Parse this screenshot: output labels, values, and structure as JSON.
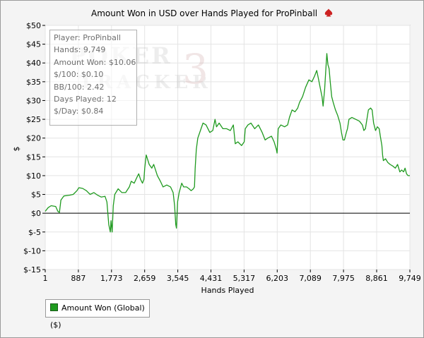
{
  "title": "Amount Won in USD over Hands Played for ProPinball",
  "stats": [
    "Player: ProPinball",
    "Hands: 9,749",
    "Amount Won: $10.06",
    "$/100: $0.10",
    "BB/100: 2.42",
    "Days Played: 12",
    "$/Day: $0.84"
  ],
  "watermark": {
    "line1": "POKER",
    "line2": "TRACKER",
    "number": "3"
  },
  "legend": {
    "label": "Amount Won (Global) ($)"
  },
  "colors": {
    "series": "#1f9a1f",
    "grid": "#e4e4e4",
    "plot_bg": "#ffffff",
    "spade": "#cc2222"
  },
  "chart_data": {
    "type": "line",
    "title": "Amount Won in USD over Hands Played for ProPinball",
    "xlabel": "Hands Played",
    "ylabel": "$",
    "xlim": [
      1,
      9749
    ],
    "ylim": [
      -15,
      50
    ],
    "x_ticks": [
      1,
      887,
      1773,
      2659,
      3545,
      4431,
      5317,
      6203,
      7089,
      7975,
      8861,
      9749
    ],
    "x_tick_labels": [
      "1",
      "887",
      "1,773",
      "2,659",
      "3,545",
      "4,431",
      "5,317",
      "6,203",
      "7,089",
      "7,975",
      "8,861",
      "9,749"
    ],
    "y_ticks": [
      50,
      45,
      40,
      35,
      30,
      25,
      20,
      15,
      10,
      5,
      0,
      -5,
      -10,
      -15
    ],
    "y_tick_labels": [
      "$50",
      "$45",
      "$40",
      "$35",
      "$30",
      "$25",
      "$20",
      "$15",
      "$10",
      "$5",
      "$0",
      "$-5",
      "$-10",
      "$-15"
    ],
    "grid": true,
    "legend_position": "bottom-left",
    "series": [
      {
        "name": "Amount Won (Global) ($)",
        "points": [
          [
            1,
            0.5
          ],
          [
            80,
            1.5
          ],
          [
            160,
            2.0
          ],
          [
            280,
            1.8
          ],
          [
            340,
            0.5
          ],
          [
            380,
            0.2
          ],
          [
            420,
            3.5
          ],
          [
            500,
            4.6
          ],
          [
            650,
            4.8
          ],
          [
            750,
            5.0
          ],
          [
            850,
            6.0
          ],
          [
            900,
            6.8
          ],
          [
            1000,
            6.6
          ],
          [
            1100,
            6.0
          ],
          [
            1200,
            5.0
          ],
          [
            1300,
            5.5
          ],
          [
            1400,
            4.8
          ],
          [
            1500,
            4.3
          ],
          [
            1600,
            4.5
          ],
          [
            1650,
            3.0
          ],
          [
            1700,
            -3.0
          ],
          [
            1740,
            -5.0
          ],
          [
            1760,
            -2.0
          ],
          [
            1790,
            -5.0
          ],
          [
            1820,
            2.0
          ],
          [
            1860,
            5.0
          ],
          [
            1950,
            6.5
          ],
          [
            2050,
            5.5
          ],
          [
            2150,
            5.5
          ],
          [
            2250,
            7.0
          ],
          [
            2300,
            8.5
          ],
          [
            2380,
            8.0
          ],
          [
            2450,
            9.5
          ],
          [
            2500,
            10.5
          ],
          [
            2550,
            9.0
          ],
          [
            2600,
            8.0
          ],
          [
            2640,
            9.0
          ],
          [
            2660,
            12.0
          ],
          [
            2700,
            15.5
          ],
          [
            2780,
            13.0
          ],
          [
            2850,
            12.0
          ],
          [
            2900,
            13.0
          ],
          [
            2950,
            11.5
          ],
          [
            3000,
            10.0
          ],
          [
            3080,
            8.5
          ],
          [
            3150,
            7.0
          ],
          [
            3250,
            7.5
          ],
          [
            3350,
            7.0
          ],
          [
            3420,
            5.5
          ],
          [
            3460,
            2.0
          ],
          [
            3490,
            -3.0
          ],
          [
            3510,
            -4.0
          ],
          [
            3540,
            3.0
          ],
          [
            3580,
            5.5
          ],
          [
            3650,
            8.0
          ],
          [
            3700,
            7.0
          ],
          [
            3780,
            7.0
          ],
          [
            3850,
            6.5
          ],
          [
            3900,
            6.0
          ],
          [
            3960,
            6.5
          ],
          [
            3990,
            7.0
          ],
          [
            4010,
            12.0
          ],
          [
            4040,
            17.0
          ],
          [
            4080,
            20.0
          ],
          [
            4150,
            22.0
          ],
          [
            4220,
            24.0
          ],
          [
            4300,
            23.5
          ],
          [
            4400,
            21.5
          ],
          [
            4480,
            22.0
          ],
          [
            4540,
            25.0
          ],
          [
            4580,
            23.0
          ],
          [
            4650,
            24.0
          ],
          [
            4750,
            22.5
          ],
          [
            4850,
            22.5
          ],
          [
            4950,
            22.0
          ],
          [
            5030,
            23.5
          ],
          [
            5080,
            18.5
          ],
          [
            5150,
            19.0
          ],
          [
            5250,
            18.0
          ],
          [
            5320,
            19.0
          ],
          [
            5350,
            22.5
          ],
          [
            5420,
            23.5
          ],
          [
            5500,
            24.0
          ],
          [
            5600,
            22.5
          ],
          [
            5700,
            23.5
          ],
          [
            5800,
            21.5
          ],
          [
            5880,
            19.5
          ],
          [
            5950,
            20.0
          ],
          [
            6050,
            20.5
          ],
          [
            6120,
            19.0
          ],
          [
            6180,
            17.0
          ],
          [
            6200,
            16.0
          ],
          [
            6230,
            22.5
          ],
          [
            6300,
            23.5
          ],
          [
            6400,
            23.0
          ],
          [
            6480,
            23.5
          ],
          [
            6530,
            25.5
          ],
          [
            6600,
            27.5
          ],
          [
            6680,
            27.0
          ],
          [
            6750,
            28.0
          ],
          [
            6800,
            29.5
          ],
          [
            6880,
            31.0
          ],
          [
            6960,
            33.5
          ],
          [
            7050,
            35.5
          ],
          [
            7130,
            35.0
          ],
          [
            7200,
            36.5
          ],
          [
            7260,
            38.0
          ],
          [
            7300,
            36.0
          ],
          [
            7350,
            33.5
          ],
          [
            7400,
            31.0
          ],
          [
            7430,
            28.5
          ],
          [
            7470,
            33.0
          ],
          [
            7500,
            38.0
          ],
          [
            7530,
            42.5
          ],
          [
            7560,
            39.5
          ],
          [
            7590,
            38.5
          ],
          [
            7620,
            35.0
          ],
          [
            7660,
            31.0
          ],
          [
            7700,
            29.5
          ],
          [
            7760,
            27.5
          ],
          [
            7820,
            26.0
          ],
          [
            7880,
            24.0
          ],
          [
            7920,
            21.5
          ],
          [
            7960,
            19.5
          ],
          [
            8000,
            19.5
          ],
          [
            8050,
            21.5
          ],
          [
            8080,
            22.5
          ],
          [
            8120,
            25.0
          ],
          [
            8200,
            25.5
          ],
          [
            8300,
            25.0
          ],
          [
            8400,
            24.5
          ],
          [
            8480,
            23.5
          ],
          [
            8520,
            22.0
          ],
          [
            8560,
            22.5
          ],
          [
            8640,
            27.5
          ],
          [
            8700,
            28.0
          ],
          [
            8740,
            27.5
          ],
          [
            8780,
            24.0
          ],
          [
            8830,
            22.0
          ],
          [
            8880,
            23.0
          ],
          [
            8930,
            22.5
          ],
          [
            8960,
            20.5
          ],
          [
            9000,
            18.0
          ],
          [
            9020,
            15.5
          ],
          [
            9040,
            14.0
          ],
          [
            9100,
            14.5
          ],
          [
            9160,
            13.5
          ],
          [
            9220,
            13.0
          ],
          [
            9300,
            12.5
          ],
          [
            9360,
            12.0
          ],
          [
            9420,
            13.0
          ],
          [
            9480,
            11.0
          ],
          [
            9530,
            11.5
          ],
          [
            9580,
            11.0
          ],
          [
            9620,
            12.0
          ],
          [
            9660,
            10.5
          ],
          [
            9700,
            10.0
          ],
          [
            9749,
            10.0
          ]
        ]
      }
    ]
  }
}
